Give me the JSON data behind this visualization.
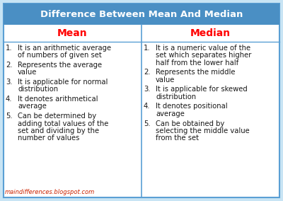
{
  "title": "Difference Between Mean And Median",
  "title_bg": "#4a8fc4",
  "title_color": "#ffffff",
  "header_left": "Mean",
  "header_right": "Median",
  "header_color": "#ff0000",
  "body_bg": "#ffffff",
  "border_color": "#5a9fd4",
  "outer_bg": "#c8e4f4",
  "text_color": "#1a1a1a",
  "watermark": "maindifferences.blogspot.com",
  "watermark_color": "#cc2200",
  "mean_items": [
    "It is an arithmetic average\nof numbers of given set",
    "Represents the average\nvalue",
    "It is applicable for normal\ndistribution",
    "It denotes arithmetical\naverage",
    "Can be determined by\nadding total values of the\nset and dividing by the\nnumber of values"
  ],
  "median_items": [
    "It is a numeric value of the\nset which separates higher\nhalf from the lower half",
    "Represents the middle\nvalue",
    "It is applicable for skewed\ndistribution",
    "It denotes positional\naverage",
    "Can be obtained by\nselecting the middle value\nfrom the set"
  ],
  "figw": 4.0,
  "figh": 2.84,
  "dpi": 100
}
